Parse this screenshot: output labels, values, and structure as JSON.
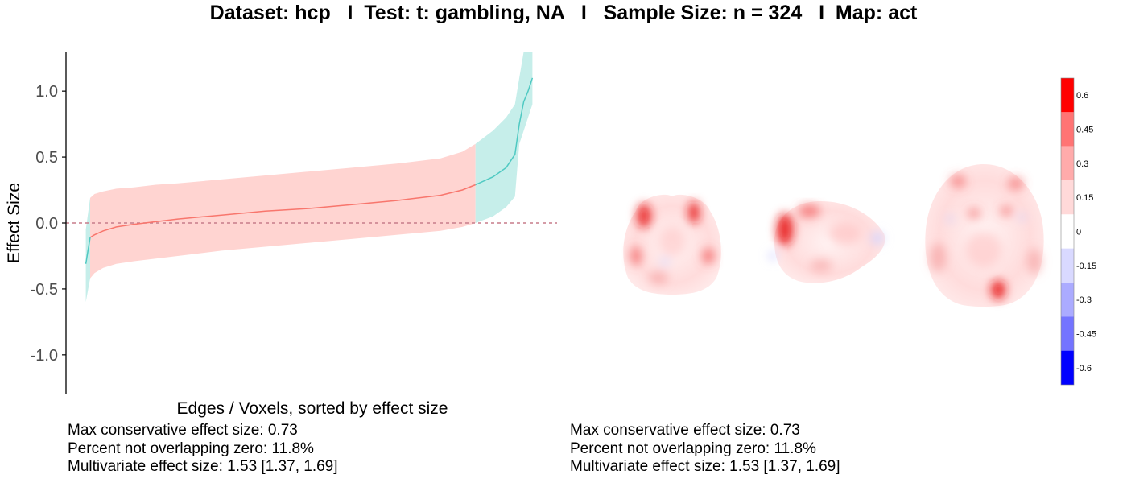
{
  "title": "Dataset: hcp   I  Test: t: gambling, NA   I   Sample Size: n = 324   I  Map: act",
  "chart_data": {
    "type": "area",
    "title": "Dataset: hcp   I  Test: t: gambling, NA   I   Sample Size: n = 324   I  Map: act",
    "xlabel": "Edges / Voxels, sorted by effect size",
    "ylabel": "Effect Size",
    "ylim": [
      -1.3,
      1.3
    ],
    "xlim": [
      0,
      1
    ],
    "yticks": [
      -1.0,
      -0.5,
      0.0,
      0.5,
      1.0
    ],
    "ytick_labels": [
      "-1.0",
      "-0.5",
      "0.0",
      "0.5",
      "1.0"
    ],
    "reference_line": 0.0,
    "grid": false,
    "series": [
      {
        "color": "#F8766D",
        "band_color": "#FFD4D1",
        "x": [
          0.0,
          0.01,
          0.03,
          0.06,
          0.1,
          0.15,
          0.2,
          0.3,
          0.4,
          0.5,
          0.6,
          0.7,
          0.8,
          0.85,
          0.88
        ],
        "y": [
          -0.11,
          -0.09,
          -0.06,
          -0.03,
          -0.01,
          0.01,
          0.03,
          0.06,
          0.09,
          0.11,
          0.14,
          0.17,
          0.21,
          0.25,
          0.29
        ],
        "lower": [
          -0.42,
          -0.38,
          -0.34,
          -0.31,
          -0.29,
          -0.27,
          -0.25,
          -0.21,
          -0.18,
          -0.15,
          -0.12,
          -0.09,
          -0.06,
          -0.03,
          0.0
        ],
        "upper": [
          0.19,
          0.22,
          0.24,
          0.26,
          0.27,
          0.29,
          0.3,
          0.33,
          0.36,
          0.39,
          0.42,
          0.45,
          0.49,
          0.54,
          0.6
        ]
      },
      {
        "color": "#4FC9C2",
        "band_color": "#C6EEEA",
        "segments": [
          {
            "x": [
              -0.01,
              0.0
            ],
            "y": [
              -0.31,
              -0.11
            ],
            "lower": [
              -0.6,
              -0.42
            ],
            "upper": [
              -0.05,
              0.19
            ]
          },
          {
            "x": [
              0.88,
              0.92,
              0.95,
              0.97,
              0.98,
              0.99,
              1.0,
              1.01
            ],
            "y": [
              0.29,
              0.35,
              0.42,
              0.52,
              0.75,
              0.92,
              1.0,
              1.1
            ],
            "lower": [
              0.0,
              0.05,
              0.12,
              0.2,
              0.6,
              0.7,
              0.8,
              0.9
            ],
            "upper": [
              0.6,
              0.7,
              0.8,
              0.9,
              1.1,
              1.3,
              1.3,
              1.3
            ]
          }
        ]
      }
    ],
    "colorbar": {
      "ticks": [
        "0.6",
        "0.45",
        "0.3",
        "0.15",
        "0",
        "-0.15",
        "-0.3",
        "-0.45",
        "-0.6"
      ],
      "colors": [
        "#FF0000",
        "#FF7474",
        "#FFABAB",
        "#FFD9D9",
        "#FFFFFF",
        "#D9D9FF",
        "#ABABFF",
        "#7474FF",
        "#0000FF"
      ]
    }
  },
  "stats_left": [
    "Max conservative effect size: 0.73",
    "Percent not overlapping zero: 11.8%",
    "Multivariate effect size: 1.53 [1.37, 1.69]"
  ],
  "stats_right": [
    "Max conservative effect size: 0.73",
    "Percent not overlapping zero: 11.8%",
    "Multivariate effect size: 1.53 [1.37, 1.69]"
  ]
}
